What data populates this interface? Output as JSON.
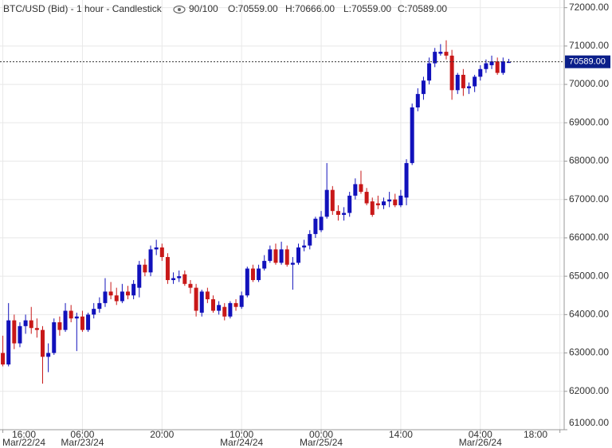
{
  "chart_data": {
    "type": "candlestick",
    "title": "BTC/USD (Bid) - 1 hour - Candlestick",
    "counter": "90/100",
    "last_labels": [
      "O:70559.00",
      "H:70666.00",
      "L:70559.00",
      "C:70589.00"
    ],
    "x": [
      "2024-03-22 16:00",
      "2024-03-22 17:00",
      "2024-03-22 18:00",
      "2024-03-22 19:00",
      "2024-03-22 20:00",
      "2024-03-22 21:00",
      "2024-03-22 22:00",
      "2024-03-22 23:00",
      "2024-03-23 00:00",
      "2024-03-23 01:00",
      "2024-03-23 02:00",
      "2024-03-23 03:00",
      "2024-03-23 04:00",
      "2024-03-23 05:00",
      "2024-03-23 06:00",
      "2024-03-23 07:00",
      "2024-03-23 08:00",
      "2024-03-23 09:00",
      "2024-03-23 10:00",
      "2024-03-23 11:00",
      "2024-03-23 12:00",
      "2024-03-23 13:00",
      "2024-03-23 14:00",
      "2024-03-23 15:00",
      "2024-03-23 16:00",
      "2024-03-23 17:00",
      "2024-03-23 18:00",
      "2024-03-23 19:00",
      "2024-03-23 20:00",
      "2024-03-23 21:00",
      "2024-03-23 22:00",
      "2024-03-23 23:00",
      "2024-03-24 00:00",
      "2024-03-24 01:00",
      "2024-03-24 02:00",
      "2024-03-24 03:00",
      "2024-03-24 04:00",
      "2024-03-24 05:00",
      "2024-03-24 06:00",
      "2024-03-24 07:00",
      "2024-03-24 08:00",
      "2024-03-24 09:00",
      "2024-03-24 10:00",
      "2024-03-24 11:00",
      "2024-03-24 12:00",
      "2024-03-24 13:00",
      "2024-03-24 14:00",
      "2024-03-24 15:00",
      "2024-03-24 16:00",
      "2024-03-24 17:00",
      "2024-03-24 18:00",
      "2024-03-24 19:00",
      "2024-03-24 20:00",
      "2024-03-24 21:00",
      "2024-03-24 22:00",
      "2024-03-24 23:00",
      "2024-03-25 00:00",
      "2024-03-25 01:00",
      "2024-03-25 02:00",
      "2024-03-25 03:00",
      "2024-03-25 04:00",
      "2024-03-25 05:00",
      "2024-03-25 06:00",
      "2024-03-25 07:00",
      "2024-03-25 08:00",
      "2024-03-25 09:00",
      "2024-03-25 10:00",
      "2024-03-25 11:00",
      "2024-03-25 12:00",
      "2024-03-25 13:00",
      "2024-03-25 14:00",
      "2024-03-25 15:00",
      "2024-03-25 16:00",
      "2024-03-25 17:00",
      "2024-03-25 18:00",
      "2024-03-25 19:00",
      "2024-03-25 20:00",
      "2024-03-25 21:00",
      "2024-03-25 22:00",
      "2024-03-25 23:00",
      "2024-03-26 00:00",
      "2024-03-26 01:00",
      "2024-03-26 02:00",
      "2024-03-26 03:00",
      "2024-03-26 04:00",
      "2024-03-26 05:00",
      "2024-03-26 06:00",
      "2024-03-26 07:00",
      "2024-03-26 08:00",
      "2024-03-26 09:00"
    ],
    "open": [
      63000,
      62700,
      63850,
      63250,
      63700,
      63850,
      63650,
      63600,
      62900,
      63000,
      63800,
      63600,
      64100,
      63900,
      63950,
      63600,
      64000,
      64150,
      64300,
      64600,
      64500,
      64350,
      64600,
      64500,
      64700,
      65300,
      65100,
      65700,
      65750,
      65500,
      64900,
      64950,
      65050,
      64800,
      64700,
      64050,
      64600,
      64400,
      64100,
      64200,
      63950,
      64300,
      64200,
      64500,
      65200,
      64900,
      65200,
      65400,
      65700,
      65350,
      65700,
      65300,
      65350,
      65750,
      65800,
      66100,
      66200,
      66550,
      67250,
      66700,
      66600,
      66650,
      67100,
      67400,
      67200,
      66950,
      66900,
      66850,
      66950,
      67000,
      66850,
      67050,
      67950,
      69400,
      69750,
      70100,
      70550,
      70800,
      70850,
      70750,
      69850,
      70250,
      69900,
      69950,
      70200,
      70400,
      70500,
      70600,
      70300,
      70559
    ],
    "high": [
      63450,
      64300,
      64000,
      63800,
      64000,
      64200,
      63900,
      63700,
      63250,
      63900,
      63950,
      64300,
      64250,
      64050,
      64100,
      64050,
      64300,
      64450,
      64950,
      64850,
      64700,
      64800,
      64750,
      64900,
      65400,
      65450,
      65800,
      65950,
      65850,
      65600,
      65100,
      65150,
      65150,
      64900,
      64800,
      64650,
      64700,
      64500,
      64350,
      64300,
      64350,
      64400,
      64600,
      65250,
      65300,
      65300,
      65550,
      65800,
      65850,
      65900,
      65800,
      65500,
      65850,
      65950,
      66200,
      66550,
      66700,
      67950,
      67350,
      66850,
      66800,
      67200,
      67550,
      67750,
      67300,
      67050,
      67100,
      67050,
      67200,
      67150,
      67250,
      68050,
      69500,
      69900,
      70200,
      70700,
      70950,
      71050,
      71150,
      70900,
      70300,
      70400,
      70050,
      70250,
      70500,
      70650,
      70750,
      70700,
      70700,
      70666
    ],
    "low": [
      62650,
      62650,
      63100,
      63150,
      63500,
      63500,
      63400,
      62200,
      62500,
      62950,
      63450,
      63550,
      63800,
      63050,
      63550,
      63550,
      63900,
      64050,
      64200,
      64400,
      64250,
      64300,
      64400,
      64400,
      64450,
      65000,
      65000,
      65550,
      65400,
      64800,
      64800,
      64850,
      64750,
      64550,
      63950,
      63950,
      64300,
      64050,
      64000,
      63850,
      63900,
      64100,
      64150,
      64450,
      64850,
      64850,
      65150,
      65350,
      65300,
      65300,
      65250,
      64650,
      65300,
      65650,
      65700,
      66000,
      66150,
      66500,
      66600,
      66450,
      66450,
      66550,
      67000,
      67150,
      66850,
      66550,
      66750,
      66750,
      66800,
      66800,
      66800,
      66850,
      67900,
      69300,
      69600,
      70000,
      70450,
      70750,
      70650,
      69600,
      69750,
      69700,
      69750,
      69800,
      70100,
      70300,
      70400,
      70250,
      70250,
      70559
    ],
    "close": [
      62700,
      63850,
      63250,
      63700,
      63850,
      63650,
      63600,
      62900,
      63000,
      63800,
      63600,
      64100,
      63900,
      63950,
      63600,
      64000,
      64150,
      64300,
      64600,
      64500,
      64350,
      64600,
      64500,
      64800,
      65300,
      65100,
      65700,
      65750,
      65500,
      64900,
      64950,
      65000,
      64800,
      64700,
      64100,
      64600,
      64400,
      64100,
      64250,
      63950,
      64300,
      64200,
      64500,
      65200,
      64900,
      65200,
      65400,
      65700,
      65350,
      65700,
      65300,
      65350,
      65750,
      65800,
      66100,
      66500,
      66550,
      67250,
      66700,
      66600,
      66650,
      67100,
      67400,
      67200,
      66900,
      66600,
      66850,
      66950,
      67000,
      66850,
      67100,
      67950,
      69400,
      69750,
      70100,
      70550,
      70850,
      70850,
      70750,
      69850,
      70250,
      69900,
      69950,
      70200,
      70400,
      70550,
      70600,
      70300,
      70600,
      70589
    ],
    "up_color": "#1111bb",
    "down_color": "#c81818",
    "last_price": {
      "value": 70589,
      "label": "70589.00"
    },
    "xlim": [
      "2024-03-22 15:30",
      "2024-03-26 18:45"
    ],
    "xticks": [
      {
        "value": "2024-03-22 16:00",
        "label": "16:00",
        "date": "Mar/22/24"
      },
      {
        "value": "2024-03-23 06:00",
        "label": "06:00",
        "date": "Mar/23/24"
      },
      {
        "value": "2024-03-23 20:00",
        "label": "20:00"
      },
      {
        "value": "2024-03-24 10:00",
        "label": "10:00",
        "date": "Mar/24/24"
      },
      {
        "value": "2024-03-25 00:00",
        "label": "00:00",
        "date": "Mar/25/24"
      },
      {
        "value": "2024-03-25 14:00",
        "label": "14:00"
      },
      {
        "value": "2024-03-26 04:00",
        "label": "04:00",
        "date": "Mar/26/24"
      },
      {
        "value": "2024-03-26 18:00",
        "label": "18:00"
      }
    ],
    "ylim": [
      61000,
      72200
    ],
    "yticks": [
      {
        "value": 61000,
        "label": "61000.00"
      },
      {
        "value": 62000,
        "label": "62000.00"
      },
      {
        "value": 63000,
        "label": "63000.00"
      },
      {
        "value": 64000,
        "label": "64000.00"
      },
      {
        "value": 65000,
        "label": "65000.00"
      },
      {
        "value": 66000,
        "label": "66000.00"
      },
      {
        "value": 67000,
        "label": "67000.00"
      },
      {
        "value": 68000,
        "label": "68000.00"
      },
      {
        "value": 69000,
        "label": "69000.00"
      },
      {
        "value": 70000,
        "label": "70000.00"
      },
      {
        "value": 71000,
        "label": "71000.00"
      },
      {
        "value": 72000,
        "label": "72000.00"
      }
    ],
    "grid": true
  }
}
